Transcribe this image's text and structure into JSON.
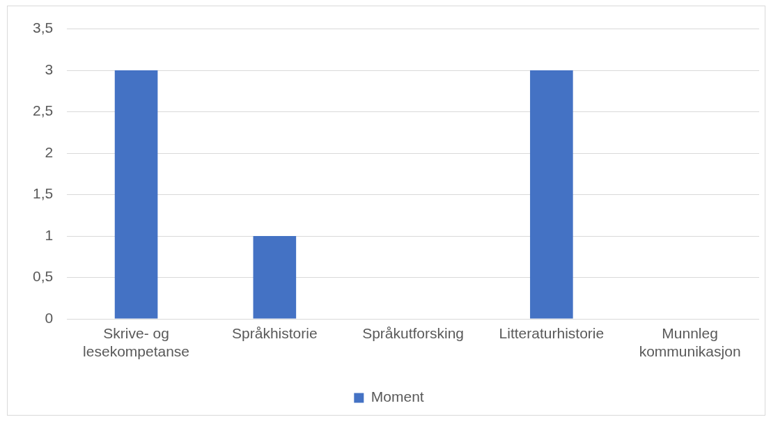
{
  "chart_data": {
    "type": "bar",
    "categories": [
      "Skrive- og lesekompetanse",
      "Språkhistorie",
      "Språkutforsking",
      "Litteraturhistorie",
      "Munnleg kommunikasjon"
    ],
    "series": [
      {
        "name": "Moment",
        "color": "#4472c4",
        "values": [
          3,
          1,
          0,
          3,
          0
        ]
      }
    ],
    "ylim": [
      0,
      3.5
    ],
    "yticks": [
      0,
      {
        "value": 0.5,
        "label": "0,5"
      },
      1,
      {
        "value": 1.5,
        "label": "1,5"
      },
      2,
      {
        "value": 2.5,
        "label": "2,5"
      },
      3,
      {
        "value": 3.5,
        "label": "3,5"
      }
    ],
    "grid": "y",
    "legend": "bottom"
  }
}
